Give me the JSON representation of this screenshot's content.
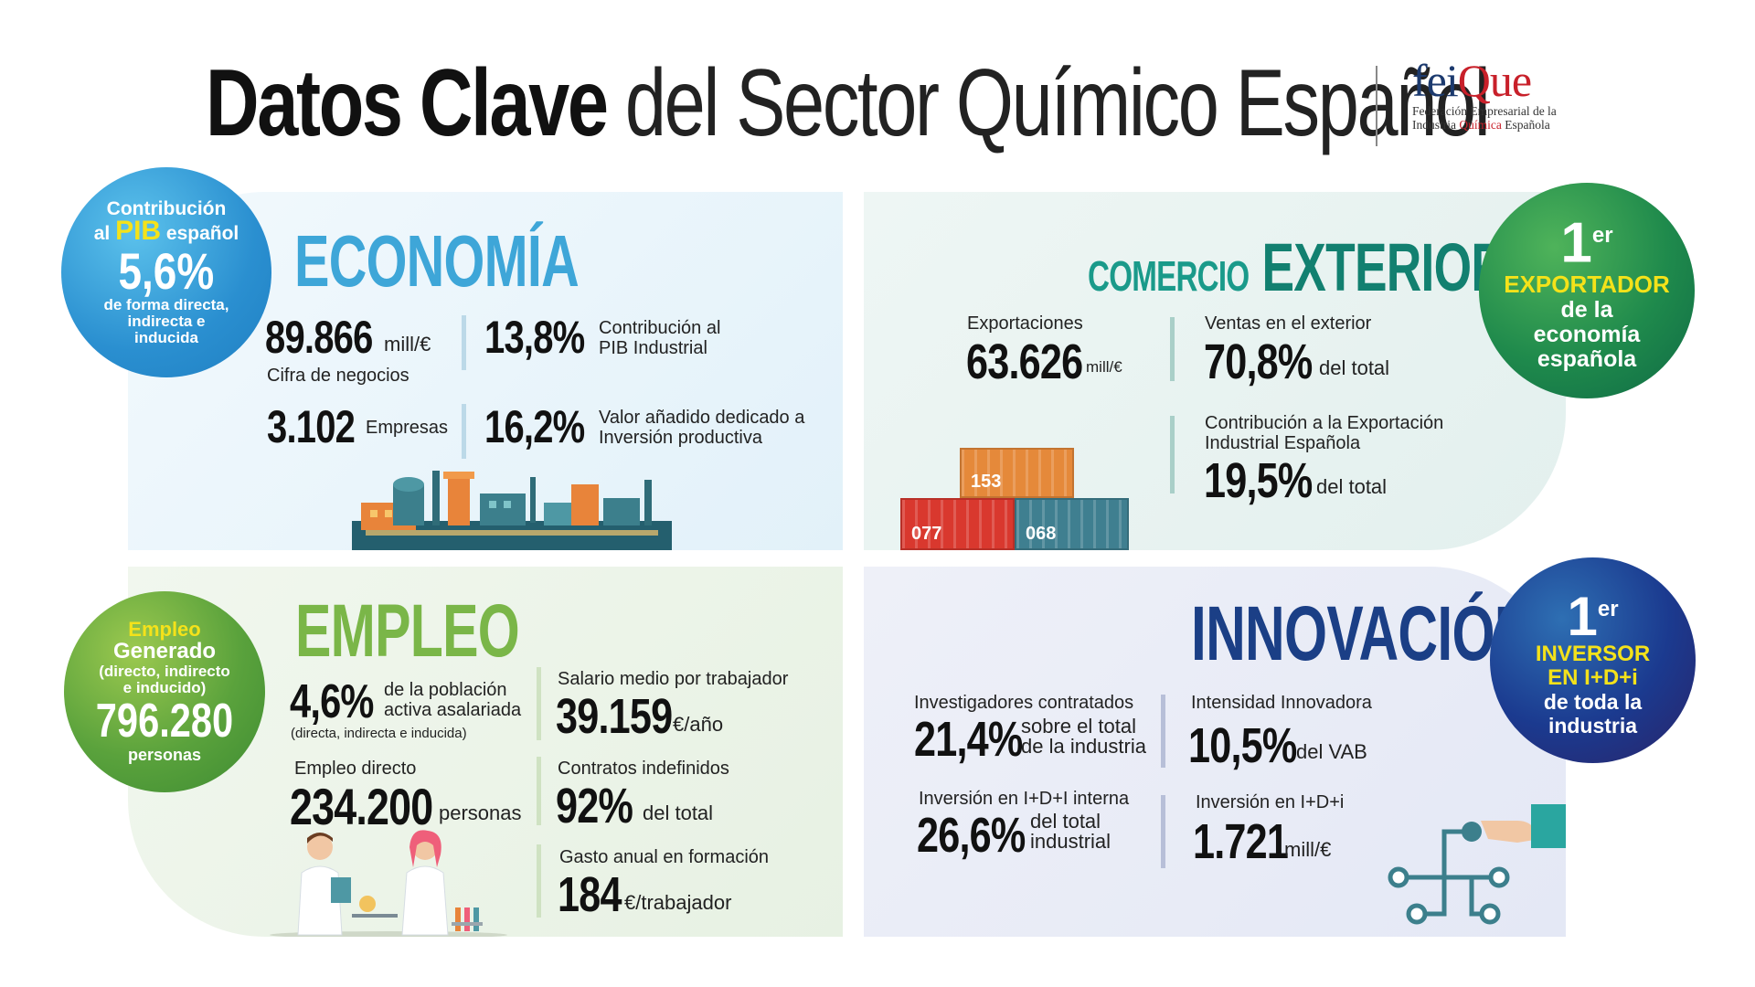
{
  "header": {
    "title_bold": "Datos Clave",
    "title_light": "del Sector Químico Español",
    "logo": {
      "word_a": "fei",
      "word_b": "Que",
      "line1": "Federación Empresarial de la",
      "line2_a": "Industria ",
      "line2_b": "Química",
      "line2_c": " Española"
    }
  },
  "economia": {
    "title": "ECONOMÍA",
    "cifra_value": "89.866",
    "cifra_unit": "mill/€",
    "cifra_label": "Cifra de negocios",
    "pib_ind_value": "13,8%",
    "pib_ind_label1": "Contribución al",
    "pib_ind_label2": "PIB Industrial",
    "empresas_value": "3.102",
    "empresas_label": "Empresas",
    "valor_value": "16,2%",
    "valor_label1": "Valor añadido dedicado a",
    "valor_label2": "Inversión productiva"
  },
  "pib_circle": {
    "line1": "Contribución",
    "line2a": "al ",
    "line2b": "PIB",
    "line2c": " español",
    "value": "5,6%",
    "line3": "de forma directa,",
    "line4": "indirecta e",
    "line5": "inducida"
  },
  "comercio": {
    "title_a": "COMERCIO",
    "title_b": "EXTERIOR",
    "export_label": "Exportaciones",
    "export_value": "63.626",
    "export_unit": "mill/€",
    "ventas_label": "Ventas en el exterior",
    "ventas_value": "70,8%",
    "ventas_unit": "del total",
    "contrib_label1": "Contribución a la Exportación",
    "contrib_label2": "Industrial Española",
    "contrib_value": "19,5%",
    "contrib_unit": "del total",
    "containers": [
      "153",
      "077",
      "068"
    ]
  },
  "exportador_circle": {
    "rank": "1",
    "rank_sup": "er",
    "line1": "EXPORTADOR",
    "line2": "de la",
    "line3": "economía",
    "line4": "española"
  },
  "empleo": {
    "title": "EMPLEO",
    "pob_value": "4,6%",
    "pob_label1": "de la población",
    "pob_label2": "activa asalariada",
    "pob_note": "(directa, indirecta e inducida)",
    "directo_label": "Empleo directo",
    "directo_value": "234.200",
    "directo_unit": "personas",
    "salario_label": "Salario medio por trabajador",
    "salario_value": "39.159",
    "salario_unit": "€/año",
    "contratos_label": "Contratos indefinidos",
    "contratos_value": "92%",
    "contratos_unit": "del total",
    "gasto_label": "Gasto anual en formación",
    "gasto_value": "184",
    "gasto_unit": "€/trabajador"
  },
  "empleo_circle": {
    "line1": "Empleo",
    "line2": "Generado",
    "line3": "(directo, indirecto",
    "line4": "e inducido)",
    "value": "796.280",
    "line5": "personas"
  },
  "innovacion": {
    "title": "INNOVACIÓN",
    "invest_label": "Investigadores contratados",
    "invest_value": "21,4%",
    "invest_unit1": "sobre el total",
    "invest_unit2": "de la industria",
    "intens_label": "Intensidad Innovadora",
    "intens_value": "10,5%",
    "intens_unit": "del VAB",
    "inv_int_label": "Inversión en I+D+I interna",
    "inv_int_value": "26,6%",
    "inv_int_unit1": "del total",
    "inv_int_unit2": "industrial",
    "inv_label": "Inversión en I+D+i",
    "inv_value": "1.721",
    "inv_unit": "mill/€"
  },
  "inversor_circle": {
    "rank": "1",
    "rank_sup": "er",
    "line1": "INVERSOR",
    "line2": "EN I+D+i",
    "line3": "de toda la",
    "line4": "industria"
  },
  "colors": {
    "economia": "#3ea6d8",
    "comercio_a": "#1a9a8a",
    "comercio_b": "#128070",
    "empleo": "#7ab648",
    "innovacion": "#1b3f86",
    "accent_yellow": "#f4e21a"
  }
}
